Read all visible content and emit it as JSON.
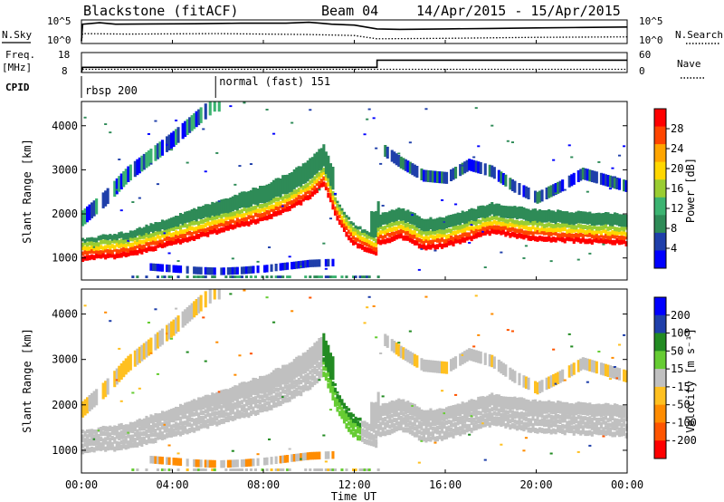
{
  "header": {
    "station": "Blackstone (fitACF)",
    "beam": "Beam 04",
    "date_range": "14/Apr/2015 - 15/Apr/2015"
  },
  "time_axis": {
    "label": "Time UT",
    "ticks": [
      "00:00",
      "04:00",
      "08:00",
      "12:00",
      "16:00",
      "20:00",
      "00:00"
    ],
    "range_hours": [
      0,
      24
    ]
  },
  "colors": {
    "power": [
      "#0000ff",
      "#1f3faa",
      "#2e8b57",
      "#3cb371",
      "#9acd32",
      "#ffd700",
      "#ffa500",
      "#ff4500",
      "#ff0000"
    ],
    "velocity": [
      "#0000ff",
      "#1f3faa",
      "#228b22",
      "#66cc33",
      "#c0c0c0",
      "#ffc020",
      "#ff8c00",
      "#ff5500",
      "#ff0000"
    ]
  },
  "chart_data": [
    {
      "type": "line",
      "panel": "N.Sky / N.Search",
      "left_label": "N.Sky",
      "right_label": "N.Search",
      "left_ticks": [
        "10^5",
        "10^0"
      ],
      "right_ticks": [
        "10^5",
        "10^0"
      ],
      "series": [
        {
          "name": "N.Sky",
          "style": "solid",
          "x": [
            0,
            0.05,
            0.8,
            1.5,
            3,
            5,
            7,
            9,
            10,
            10.5,
            11,
            12,
            13,
            14,
            16,
            18,
            20,
            22,
            24
          ],
          "y": [
            0.1,
            0.82,
            0.88,
            0.82,
            0.83,
            0.84,
            0.86,
            0.86,
            0.9,
            0.86,
            0.82,
            0.78,
            0.62,
            0.6,
            0.62,
            0.64,
            0.66,
            0.68,
            0.7
          ]
        },
        {
          "name": "N.Search",
          "style": "dotted",
          "x": [
            0,
            0.05,
            2,
            6,
            10,
            12,
            13,
            16,
            20,
            24
          ],
          "y": [
            0.1,
            0.42,
            0.4,
            0.42,
            0.38,
            0.34,
            0.2,
            0.22,
            0.26,
            0.28
          ]
        }
      ]
    },
    {
      "type": "line",
      "panel": "Freq. / Nave",
      "left_label": "Freq.",
      "left_unit": "[MHz]",
      "right_label": "Nave",
      "left_ticks": [
        "18",
        "8"
      ],
      "right_ticks": [
        "60",
        "0"
      ],
      "series": [
        {
          "name": "Freq.",
          "style": "solid",
          "x": [
            0,
            0.05,
            13.0,
            13.0,
            24
          ],
          "y": [
            8,
            10.6,
            10.6,
            14.2,
            14.2
          ]
        },
        {
          "name": "Nave",
          "style": "dotted",
          "x": [
            0,
            0.05,
            24
          ],
          "y": [
            8,
            9.6,
            9.6
          ]
        }
      ]
    },
    {
      "type": "table",
      "panel": "CPID",
      "label": "CPID",
      "segments": [
        {
          "start": 0,
          "name": "rbsp 200"
        },
        {
          "start": 5.9,
          "name": "normal (fast) 151"
        }
      ]
    },
    {
      "type": "heatmap",
      "panel": "Power",
      "ylabel": "Slant Range [km]",
      "ylim": [
        500,
        4550
      ],
      "y_ticks": [
        1000,
        2000,
        3000,
        4000
      ],
      "colorbar_label": "Power [dB]",
      "colorbar_ticks": [
        4,
        8,
        12,
        16,
        20,
        24,
        28
      ],
      "colorbar_range": [
        0,
        32
      ],
      "features": [
        {
          "name": "main-band",
          "x": [
            0,
            2,
            4,
            6,
            8,
            9,
            10,
            10.6,
            11.2,
            11.8,
            12.4,
            12.9,
            13.0,
            14,
            15,
            16,
            18,
            20,
            22,
            24
          ],
          "y": [
            1000,
            1080,
            1350,
            1620,
            1900,
            2100,
            2400,
            2700,
            1900,
            1400,
            1200,
            1100,
            1350,
            1500,
            1250,
            1300,
            1600,
            1450,
            1400,
            1350
          ]
        },
        {
          "name": "rising-arc",
          "x": [
            0,
            1,
            2,
            3,
            4,
            5,
            5.8
          ],
          "y": [
            1900,
            2350,
            2900,
            3300,
            3700,
            4150,
            4500
          ]
        },
        {
          "name": "upper-arc",
          "x": [
            13.2,
            14,
            15,
            16,
            17,
            18,
            19,
            20,
            21,
            22,
            23,
            24
          ],
          "y": [
            3450,
            3150,
            2850,
            2800,
            3100,
            2950,
            2600,
            2350,
            2600,
            2900,
            2750,
            2600
          ]
        },
        {
          "name": "low-patch",
          "x": [
            3,
            4,
            5,
            6,
            7,
            8,
            9,
            10,
            11
          ],
          "y": [
            800,
            760,
            720,
            700,
            720,
            760,
            820,
            880,
            900
          ]
        }
      ]
    },
    {
      "type": "heatmap",
      "panel": "Velocity",
      "ylabel": "Slant Range [km]",
      "ylim": [
        500,
        4550
      ],
      "y_ticks": [
        1000,
        2000,
        3000,
        4000
      ],
      "colorbar_label": "Velocity [m s⁻¹]",
      "colorbar_ticks": [
        200,
        100,
        50,
        15,
        -15,
        -50,
        -100,
        -200
      ],
      "colorbar_range": [
        -250,
        250
      ]
    }
  ]
}
